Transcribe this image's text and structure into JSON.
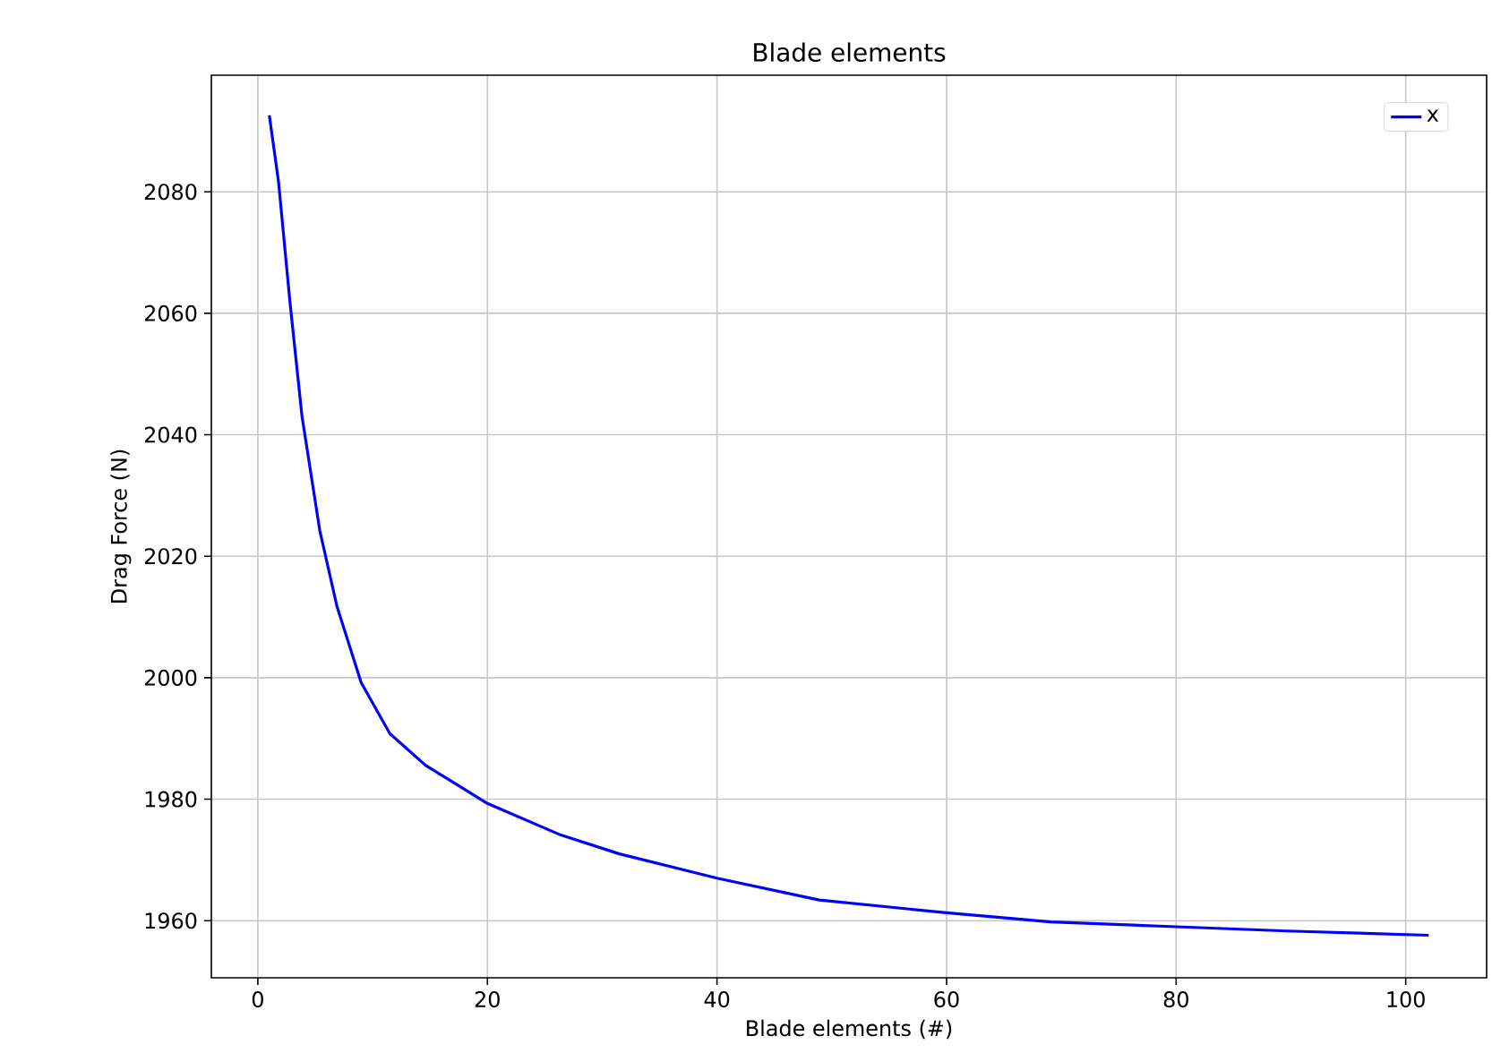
{
  "chart_data": {
    "type": "line",
    "title": "Blade elements",
    "xlabel": "Blade elements (#)",
    "ylabel": "Drag Force (N)",
    "x": [
      1,
      1.8,
      2.8,
      3.85,
      5.4,
      6.9,
      9,
      11.5,
      14.6,
      20,
      26.4,
      31.5,
      40,
      48.9,
      60,
      69.1,
      80,
      89.7,
      102
    ],
    "series": [
      {
        "name": "x",
        "color": "#0000ff",
        "values": [
          2092.6,
          2081.7,
          2061.8,
          2043,
          2024.2,
          2011.7,
          1999.2,
          1990.8,
          1985.6,
          1979.3,
          1974.1,
          1971,
          1967,
          1963.4,
          1961.3,
          1959.8,
          1959,
          1958.3,
          1957.6
        ]
      }
    ],
    "xlim": [
      -4.05,
      107.05
    ],
    "ylim": [
      1950.6,
      2099.2
    ],
    "xticks": [
      0,
      20,
      40,
      60,
      80,
      100
    ],
    "yticks": [
      1960,
      1980,
      2000,
      2020,
      2040,
      2060,
      2080
    ],
    "grid": true,
    "legend": "top right",
    "marker": "none",
    "line_style": "solid"
  }
}
